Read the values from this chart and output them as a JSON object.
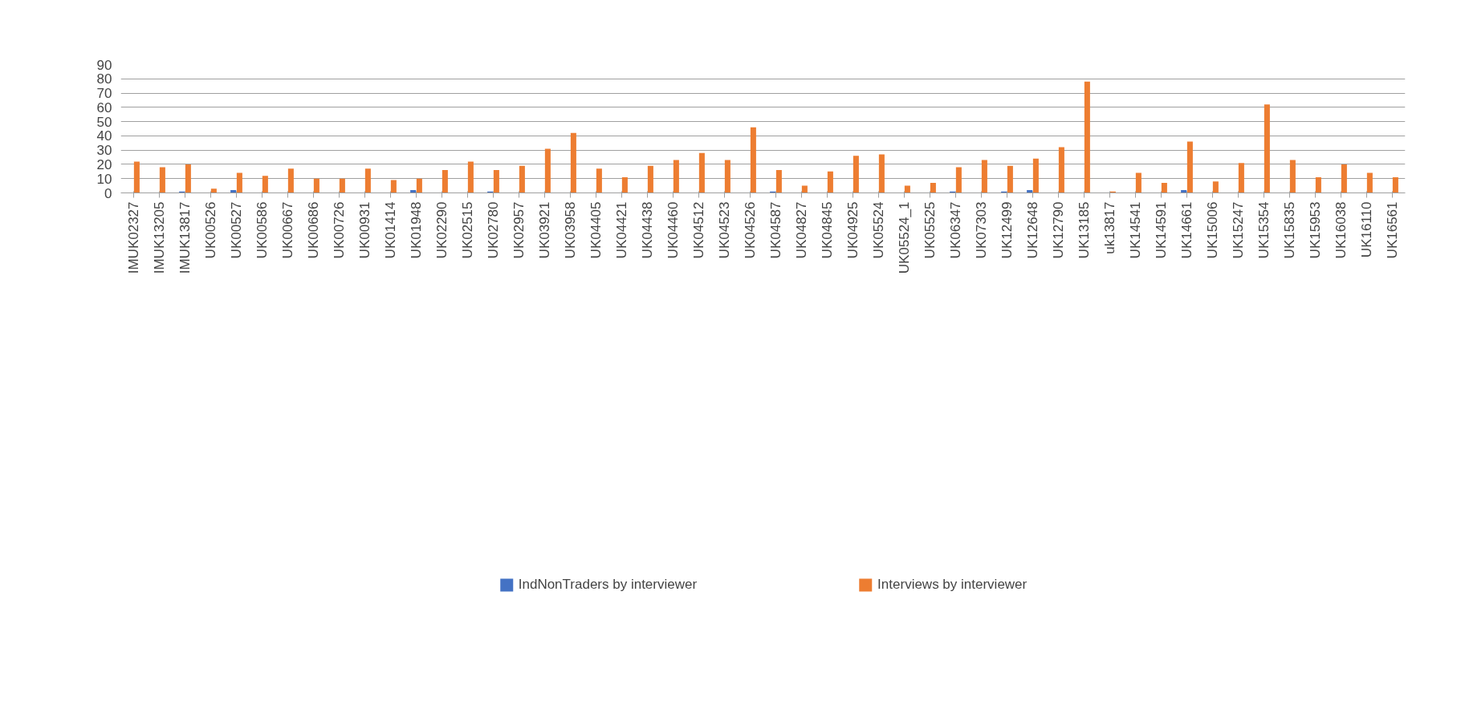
{
  "chart_data": {
    "type": "bar",
    "categories": [
      "IMUK02327",
      "IMUK13205",
      "IMUK13817",
      "UK00526",
      "UK00527",
      "UK00586",
      "UK00667",
      "UK00686",
      "UK00726",
      "UK00931",
      "UK01414",
      "UK01948",
      "UK02290",
      "UK02515",
      "UK02780",
      "UK02957",
      "UK03921",
      "UK03958",
      "UK04405",
      "UK04421",
      "UK04438",
      "UK04460",
      "UK04512",
      "UK04523",
      "UK04526",
      "UK04587",
      "UK04827",
      "UK04845",
      "UK04925",
      "UK05524",
      "UK05524_1",
      "UK05525",
      "UK06347",
      "UK07303",
      "UK12499",
      "UK12648",
      "UK12790",
      "UK13185",
      "uk13817",
      "UK14541",
      "UK14591",
      "UK14661",
      "UK15006",
      "UK15247",
      "UK15354",
      "UK15835",
      "UK15953",
      "UK16038",
      "UK16110",
      "UK16561"
    ],
    "series": [
      {
        "name": "IndNonTraders by interviewer",
        "color": "#4472c4",
        "values": [
          0,
          0,
          1,
          0,
          2,
          0,
          0,
          0,
          0,
          0,
          0,
          2,
          0,
          0,
          1,
          0,
          0,
          0,
          0,
          0,
          0,
          0,
          0,
          0,
          0,
          1,
          0,
          0,
          0,
          0,
          0,
          0,
          1,
          0,
          1,
          2,
          0,
          0,
          0,
          0,
          0,
          2,
          0,
          0,
          0,
          0,
          0,
          0,
          0,
          0
        ]
      },
      {
        "name": "Interviews by interviewer",
        "color": "#ed7d31",
        "values": [
          22,
          18,
          20,
          3,
          14,
          12,
          17,
          10,
          10,
          17,
          9,
          10,
          16,
          22,
          16,
          19,
          31,
          42,
          17,
          11,
          19,
          23,
          28,
          23,
          46,
          16,
          5,
          15,
          26,
          27,
          5,
          7,
          18,
          23,
          19,
          24,
          32,
          78,
          1,
          14,
          7,
          36,
          8,
          21,
          62,
          23,
          11,
          20,
          14,
          11
        ]
      }
    ],
    "ylim": [
      0,
      90
    ],
    "yticks": [
      0,
      10,
      20,
      30,
      40,
      50,
      60,
      70,
      80,
      90
    ],
    "grid": "y",
    "legend": "bottom"
  }
}
